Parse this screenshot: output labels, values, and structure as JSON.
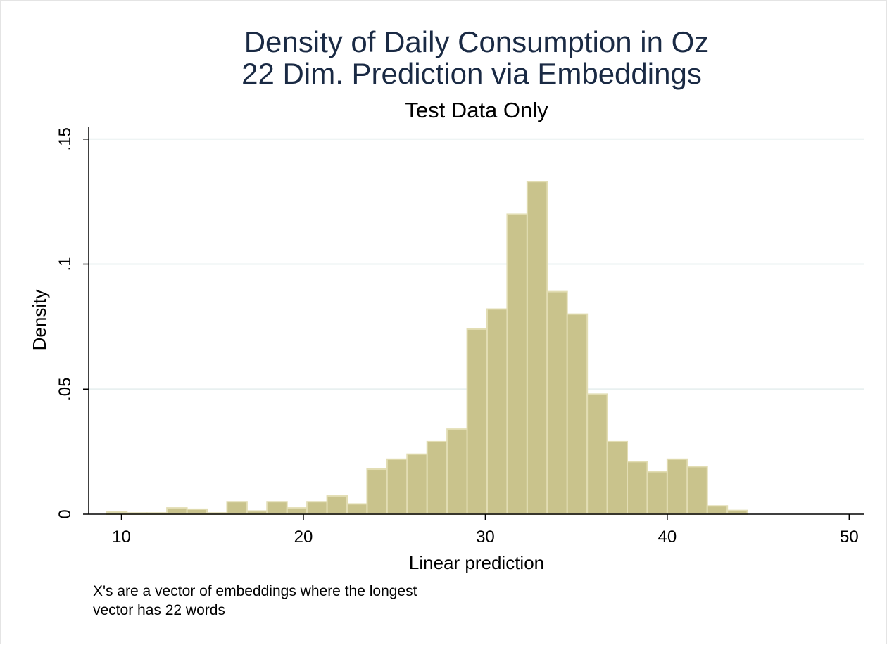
{
  "chart_data": {
    "type": "bar",
    "title": [
      "Density of Daily Consumption in Oz",
      "22 Dim. Prediction via Embeddings"
    ],
    "subtitle": "Test Data Only",
    "xlabel": "Linear prediction",
    "ylabel": "Density",
    "xlim": [
      8.2,
      50.8
    ],
    "ylim": [
      0,
      0.155
    ],
    "x_ticks": [
      {
        "value": 10,
        "label": "10"
      },
      {
        "value": 20,
        "label": "20"
      },
      {
        "value": 30,
        "label": "30"
      },
      {
        "value": 40,
        "label": "40"
      },
      {
        "value": 50,
        "label": "50"
      }
    ],
    "y_ticks": [
      {
        "value": 0,
        "label": "0"
      },
      {
        "value": 0.05,
        "label": ".05"
      },
      {
        "value": 0.1,
        "label": ".1"
      },
      {
        "value": 0.15,
        "label": ".15"
      }
    ],
    "grid": true,
    "bin_width": 1.1,
    "bins": [
      {
        "start": 9.2,
        "density": 0.0009
      },
      {
        "start": 10.3,
        "density": 0.0005
      },
      {
        "start": 11.4,
        "density": 0.0005
      },
      {
        "start": 12.5,
        "density": 0.0025
      },
      {
        "start": 13.6,
        "density": 0.002
      },
      {
        "start": 14.7,
        "density": 0.0005
      },
      {
        "start": 15.8,
        "density": 0.005
      },
      {
        "start": 16.9,
        "density": 0.0013
      },
      {
        "start": 18.0,
        "density": 0.005
      },
      {
        "start": 19.1,
        "density": 0.0025
      },
      {
        "start": 20.2,
        "density": 0.005
      },
      {
        "start": 21.3,
        "density": 0.0073
      },
      {
        "start": 22.4,
        "density": 0.0041
      },
      {
        "start": 23.5,
        "density": 0.018
      },
      {
        "start": 24.6,
        "density": 0.022
      },
      {
        "start": 25.7,
        "density": 0.024
      },
      {
        "start": 26.8,
        "density": 0.029
      },
      {
        "start": 27.9,
        "density": 0.034
      },
      {
        "start": 29.0,
        "density": 0.074
      },
      {
        "start": 30.1,
        "density": 0.082
      },
      {
        "start": 31.2,
        "density": 0.12
      },
      {
        "start": 32.3,
        "density": 0.133
      },
      {
        "start": 33.4,
        "density": 0.089
      },
      {
        "start": 34.5,
        "density": 0.08
      },
      {
        "start": 35.6,
        "density": 0.048
      },
      {
        "start": 36.7,
        "density": 0.029
      },
      {
        "start": 37.8,
        "density": 0.021
      },
      {
        "start": 38.9,
        "density": 0.017
      },
      {
        "start": 40.0,
        "density": 0.022
      },
      {
        "start": 41.1,
        "density": 0.019
      },
      {
        "start": 42.2,
        "density": 0.0033
      },
      {
        "start": 43.3,
        "density": 0.0015
      }
    ],
    "note": [
      "X's are a vector of embeddings where the longest",
      "vector has 22 words"
    ],
    "colors": {
      "bar_fill": "#c9c38c",
      "bar_edge": "#e2ddb3",
      "title": "#1a2a44",
      "grid": "#e8f0f0"
    }
  }
}
